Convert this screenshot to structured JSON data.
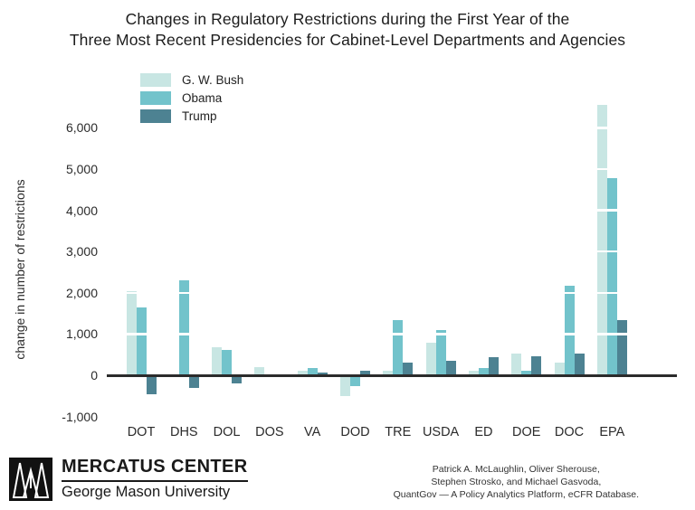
{
  "accent_colors": {
    "bush": "#c8e6e3",
    "obama": "#72c3cb",
    "trump": "#4d8292",
    "axis": "#2b2b2b"
  },
  "chart_data": {
    "type": "bar",
    "title_line1": "Changes in Regulatory Restrictions during the First Year of the",
    "title_line2": "Three Most Recent Presidencies for Cabinet-Level Departments and Agencies",
    "ylabel": "change in number of restrictions",
    "categories": [
      "DOT",
      "DHS",
      "DOL",
      "DOS",
      "VA",
      "DOD",
      "TRE",
      "USDA",
      "ED",
      "DOE",
      "DOC",
      "EPA"
    ],
    "series": [
      {
        "name": "G. W. Bush",
        "color": "#c8e6e3",
        "values": [
          2050,
          0,
          680,
          190,
          100,
          -480,
          120,
          790,
          100,
          530,
          310,
          6550
        ]
      },
      {
        "name": "Obama",
        "color": "#72c3cb",
        "values": [
          1650,
          2300,
          620,
          0,
          180,
          -220,
          1340,
          1100,
          170,
          100,
          2170,
          4780
        ]
      },
      {
        "name": "Trump",
        "color": "#4d8292",
        "values": [
          -430,
          -270,
          -170,
          0,
          60,
          110,
          300,
          350,
          430,
          470,
          530,
          1330
        ]
      }
    ],
    "y_ticks": [
      {
        "label": "6,000",
        "value": 6000
      },
      {
        "label": "5,000",
        "value": 5000
      },
      {
        "label": "4,000",
        "value": 4000
      },
      {
        "label": "3,000",
        "value": 3000
      },
      {
        "label": "2,000",
        "value": 2000
      },
      {
        "label": "1,000",
        "value": 1000
      },
      {
        "label": "0",
        "value": 0
      },
      {
        "label": "-1,000",
        "value": -1000
      }
    ],
    "ylim": [
      -1000,
      6600
    ],
    "legend_position": "top-left",
    "grid": "white-on-bars"
  },
  "footer": {
    "logo": {
      "icon": "mercatus-m-logo",
      "primary": "MERCATUS CENTER",
      "secondary": "George Mason University"
    },
    "attribution": {
      "line1": "Patrick A. McLaughlin, Oliver Sherouse,",
      "line2": "Stephen Strosko, and Michael Gasvoda,",
      "line3": "QuantGov — A Policy Analytics Platform, eCFR Database."
    }
  }
}
